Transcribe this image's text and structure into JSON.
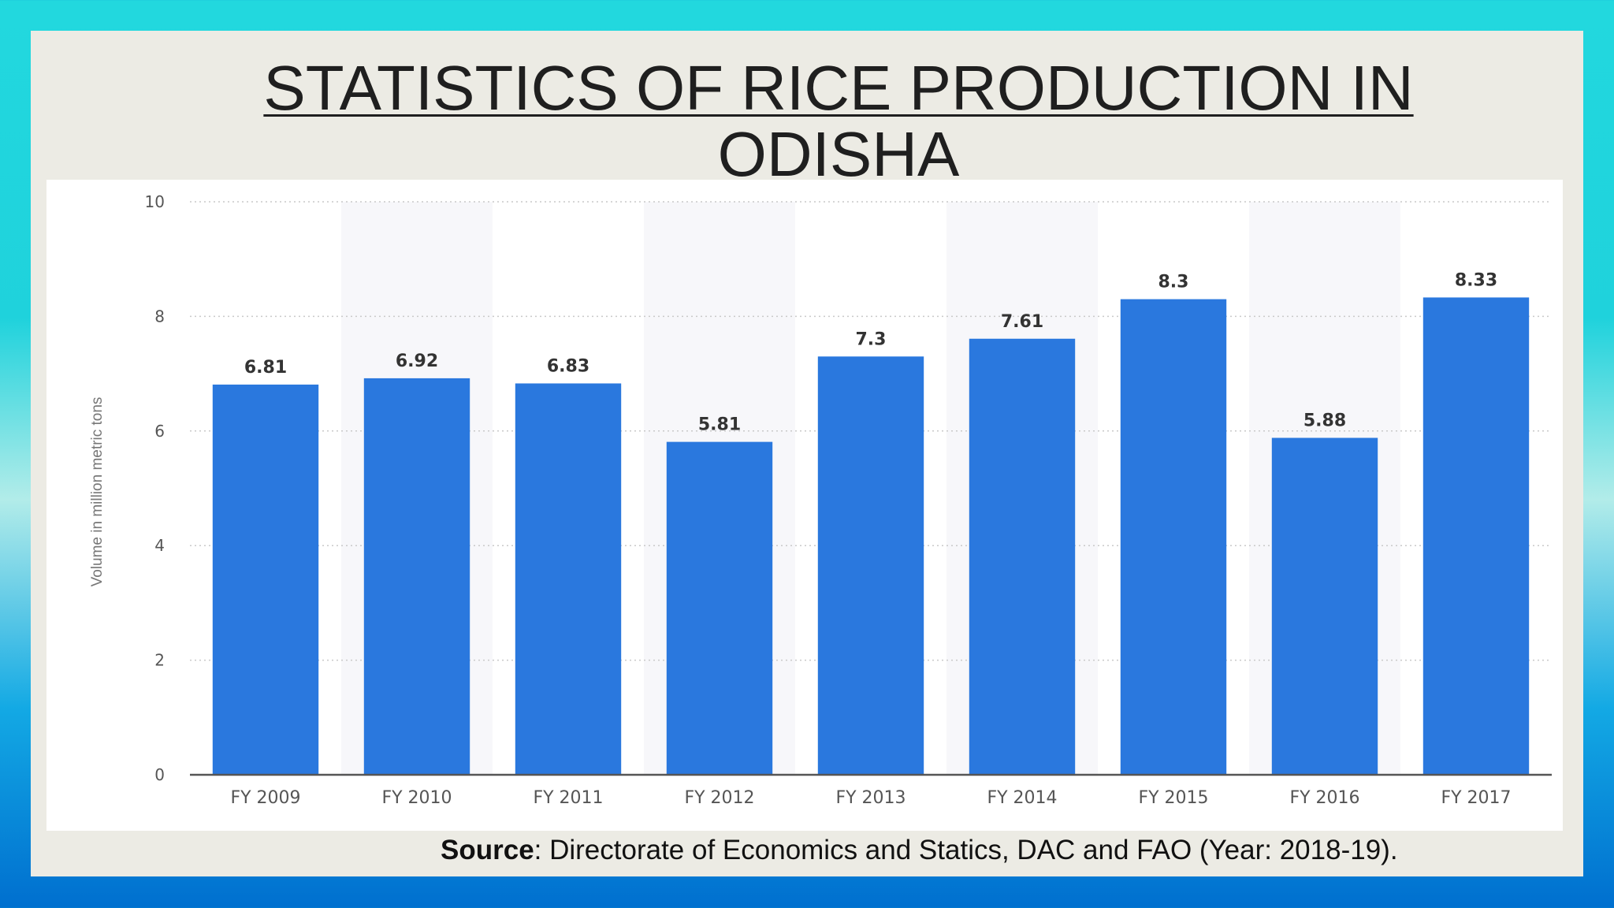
{
  "slide": {
    "title_line1": "STATISTICS OF RICE PRODUCTION IN",
    "title_line2": "ODISHA",
    "source_label": "Source",
    "source_text": ": Directorate of Economics and Statics, DAC and FAO (Year: 2018-19)."
  },
  "chart_data": {
    "type": "bar",
    "categories": [
      "FY 2009",
      "FY 2010",
      "FY 2011",
      "FY 2012",
      "FY 2013",
      "FY 2014",
      "FY 2015",
      "FY 2016",
      "FY 2017"
    ],
    "values": [
      6.81,
      6.92,
      6.83,
      5.81,
      7.3,
      7.61,
      8.3,
      5.88,
      8.33
    ],
    "data_labels": [
      "6.81",
      "6.92",
      "6.83",
      "5.81",
      "7.3",
      "7.61",
      "8.3",
      "5.88",
      "8.33"
    ],
    "title": "",
    "xlabel": "",
    "ylabel": "Volume in million metric tons",
    "ylim": [
      0,
      10
    ],
    "yticks": [
      0,
      2,
      4,
      6,
      8,
      10
    ],
    "grid": true,
    "bar_color": "#2a78de",
    "alt_band_color": "#f7f7fa"
  }
}
